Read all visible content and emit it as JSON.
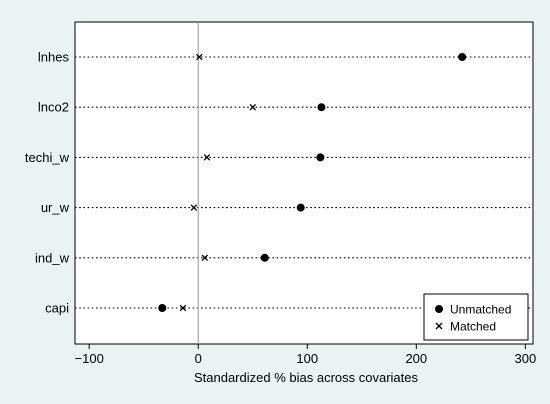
{
  "chart_data": {
    "type": "scatter",
    "categories": [
      "lnhes",
      "lnco2",
      "techi_w",
      "ur_w",
      "ind_w",
      "capi"
    ],
    "series": [
      {
        "name": "Unmatched",
        "marker": "dot",
        "values": [
          242,
          113,
          112,
          94,
          61,
          -33
        ]
      },
      {
        "name": "Matched",
        "marker": "x",
        "values": [
          1,
          50,
          8,
          -4,
          6,
          -14
        ]
      }
    ],
    "xlabel": "Standardized % bias across covariates",
    "xticks": [
      -100,
      0,
      100,
      200,
      300
    ],
    "xtick_labels": [
      "−100",
      "0",
      "100",
      "200",
      "300"
    ],
    "xlim": [
      -113,
      307
    ],
    "zero_reference_line": true,
    "legend_position": "bottom-right",
    "colors": {
      "background": "#eaf2f3",
      "plot_area": "#ffffff",
      "markers": "#000000",
      "reference_line": "#9a9a9a"
    }
  }
}
